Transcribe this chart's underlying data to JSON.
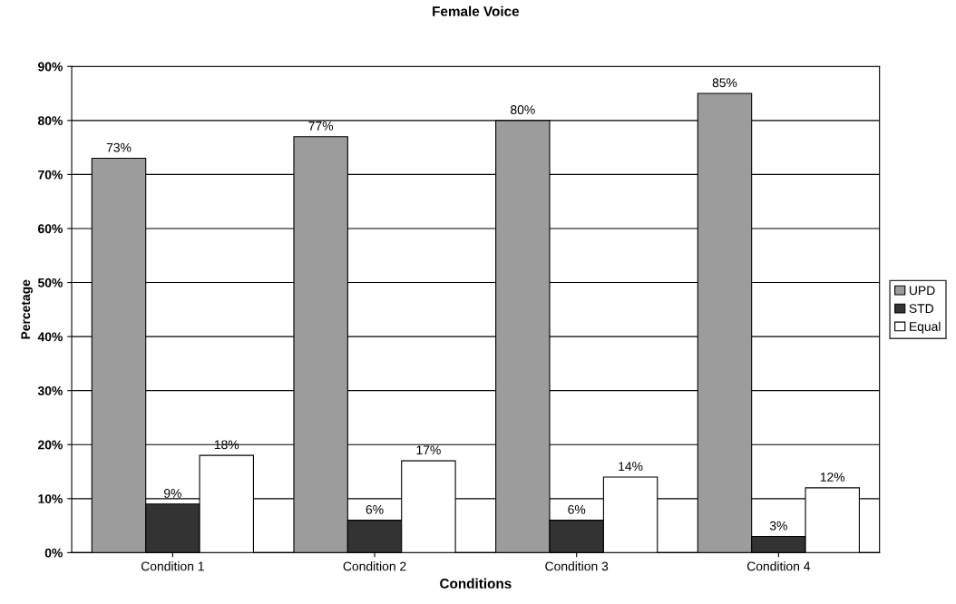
{
  "chart_data": {
    "type": "bar",
    "title": "Female Voice",
    "xlabel": "Conditions",
    "ylabel": "Percetage",
    "categories": [
      "Condition 1",
      "Condition 2",
      "Condition 3",
      "Condition 4"
    ],
    "series": [
      {
        "name": "UPD",
        "color": "#9c9c9c",
        "values": [
          73,
          77,
          80,
          85
        ],
        "value_labels": [
          "73%",
          "77%",
          "80%",
          "85%"
        ]
      },
      {
        "name": "STD",
        "color": "#333333",
        "values": [
          9,
          6,
          6,
          3
        ],
        "value_labels": [
          "9%",
          "6%",
          "6%",
          "3%"
        ]
      },
      {
        "name": "Equal",
        "color": "#ffffff",
        "values": [
          18,
          17,
          14,
          12
        ],
        "value_labels": [
          "18%",
          "17%",
          "14%",
          "12%"
        ]
      }
    ],
    "ylim": [
      0,
      90
    ],
    "yticks": [
      {
        "value": 0,
        "label": "0%"
      },
      {
        "value": 10,
        "label": "10%"
      },
      {
        "value": 20,
        "label": "20%"
      },
      {
        "value": 30,
        "label": "30%"
      },
      {
        "value": 40,
        "label": "40%"
      },
      {
        "value": 50,
        "label": "50%"
      },
      {
        "value": 60,
        "label": "60%"
      },
      {
        "value": 70,
        "label": "70%"
      },
      {
        "value": 80,
        "label": "80%"
      },
      {
        "value": 90,
        "label": "90%"
      }
    ],
    "grid": "y",
    "legend": "right"
  }
}
